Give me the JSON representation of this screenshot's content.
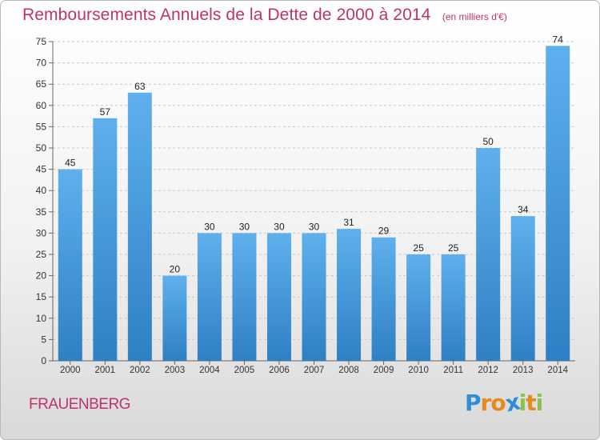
{
  "header": {
    "title": "Remboursements Annuels de la Dette de 2000 à 2014",
    "subtitle": "(en milliers d'€)"
  },
  "footer": {
    "commune": "FRAUENBERG",
    "brand": {
      "letters": [
        "P",
        "r",
        "o",
        "x",
        "i",
        "t",
        "i"
      ],
      "colors": [
        "#2d8fd6",
        "#e8891b",
        "#e8891b",
        "#2d8fd6",
        "#8bc34a",
        "#e8891b",
        "#8bc34a"
      ]
    }
  },
  "colors": {
    "accent": "#c0326b",
    "bar_top": "#5fb0ec",
    "bar_bottom": "#2f7fc4",
    "grid": "#c8c8c8",
    "text": "#222222"
  },
  "chart_data": {
    "type": "bar",
    "categories": [
      "2000",
      "2001",
      "2002",
      "2003",
      "2004",
      "2005",
      "2006",
      "2007",
      "2008",
      "2009",
      "2010",
      "2011",
      "2012",
      "2013",
      "2014"
    ],
    "values": [
      45,
      57,
      63,
      20,
      30,
      30,
      30,
      30,
      31,
      29,
      25,
      25,
      50,
      34,
      74
    ],
    "labels": [
      "45",
      "57",
      "63",
      "20",
      "30",
      "30",
      "30",
      "30",
      "31",
      "29",
      "25",
      "25",
      "50",
      "34",
      "74"
    ],
    "yticks": [
      "0",
      "5",
      "10",
      "15",
      "20",
      "25",
      "30",
      "35",
      "40",
      "45",
      "50",
      "55",
      "60",
      "65",
      "70",
      "75"
    ],
    "ylim": [
      0,
      75
    ],
    "grid": true,
    "legend": "none"
  }
}
